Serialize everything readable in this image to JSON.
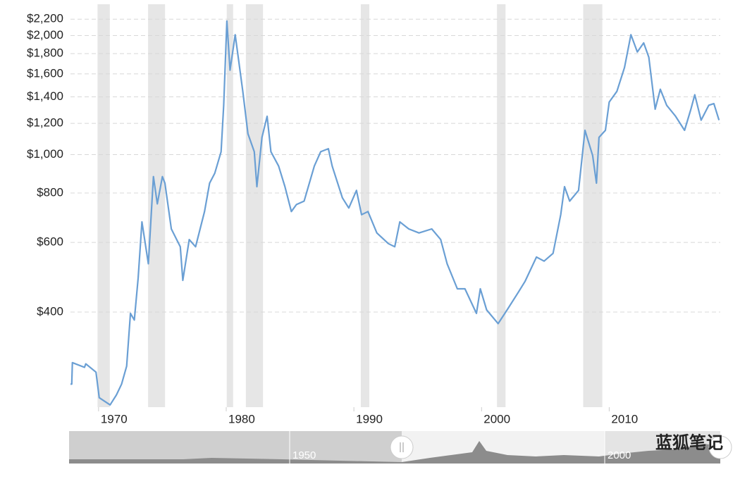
{
  "chart_data": {
    "type": "line",
    "log_scale": true,
    "grid": true,
    "color": "#6a9fd4",
    "shade_color": "#e6e6e6",
    "xlim": [
      1967.8,
      2018.7
    ],
    "xticks": [
      1970,
      1980,
      1990,
      2000,
      2010
    ],
    "ylim": [
      230,
      2400
    ],
    "yticks": [
      {
        "value": 400,
        "label": "$400"
      },
      {
        "value": 600,
        "label": "$600"
      },
      {
        "value": 800,
        "label": "$800"
      },
      {
        "value": 1000,
        "label": "$1,000"
      },
      {
        "value": 1200,
        "label": "$1,200"
      },
      {
        "value": 1400,
        "label": "$1,400"
      },
      {
        "value": 1600,
        "label": "$1,600"
      },
      {
        "value": 1800,
        "label": "$1,800"
      },
      {
        "value": 2000,
        "label": "$2,000"
      },
      {
        "value": 2200,
        "label": "$2,200"
      }
    ],
    "shaded_ranges": [
      [
        1969.92,
        1970.88
      ],
      [
        1973.88,
        1975.21
      ],
      [
        1980.04,
        1980.54
      ],
      [
        1981.54,
        1982.88
      ],
      [
        1990.54,
        1991.21
      ],
      [
        2001.21,
        2001.88
      ],
      [
        2007.96,
        2009.46
      ]
    ],
    "x": [
      1967.8,
      1967.9,
      1967.95,
      1968.9,
      1969.0,
      1969.8,
      1970.05,
      1970.9,
      1971.4,
      1971.8,
      1972.2,
      1972.5,
      1972.8,
      1973.1,
      1973.4,
      1973.9,
      1974.3,
      1974.6,
      1975.0,
      1975.2,
      1975.7,
      1976.4,
      1976.6,
      1977.1,
      1977.6,
      1978.3,
      1978.7,
      1979.1,
      1979.6,
      1979.8,
      1980.05,
      1980.3,
      1980.7,
      1981.0,
      1981.3,
      1981.7,
      1982.2,
      1982.4,
      1982.8,
      1983.2,
      1983.5,
      1984.1,
      1984.6,
      1985.1,
      1985.5,
      1986.1,
      1986.9,
      1987.4,
      1988.0,
      1988.3,
      1989.1,
      1989.6,
      1990.2,
      1990.6,
      1991.1,
      1991.8,
      1992.7,
      1993.2,
      1993.6,
      1994.3,
      1995.1,
      1996.1,
      1996.8,
      1997.3,
      1998.1,
      1998.7,
      1999.6,
      1999.9,
      2000.4,
      2001.3,
      2002.0,
      2002.9,
      2003.4,
      2004.3,
      2004.9,
      2005.6,
      2006.2,
      2006.5,
      2006.9,
      2007.6,
      2008.1,
      2008.7,
      2009.0,
      2009.2,
      2009.7,
      2010.0,
      2010.6,
      2011.2,
      2011.7,
      2012.2,
      2012.7,
      2013.1,
      2013.6,
      2014.0,
      2014.5,
      2015.2,
      2015.9,
      2016.4,
      2016.7,
      2017.2,
      2017.8,
      2018.2,
      2018.6
    ],
    "values": [
      263,
      263,
      298,
      290,
      296,
      282,
      243,
      233,
      247,
      263,
      292,
      397,
      382,
      487,
      676,
      530,
      880,
      751,
      880,
      847,
      649,
      585,
      481,
      610,
      585,
      718,
      847,
      897,
      1017,
      1333,
      2177,
      1635,
      2010,
      1706,
      1445,
      1129,
      1017,
      830,
      1106,
      1250,
      1017,
      936,
      830,
      718,
      748,
      763,
      936,
      1017,
      1035,
      936,
      778,
      733,
      812,
      705,
      718,
      634,
      596,
      585,
      676,
      649,
      634,
      649,
      610,
      530,
      458,
      458,
      397,
      458,
      405,
      374,
      405,
      450,
      478,
      551,
      538,
      563,
      705,
      830,
      763,
      812,
      1152,
      995,
      847,
      1106,
      1152,
      1358,
      1445,
      1661,
      2010,
      1818,
      1916,
      1763,
      1303,
      1463,
      1333,
      1250,
      1152,
      1303,
      1417,
      1222,
      1333,
      1346,
      1222
    ]
  },
  "navigator": {
    "labels": [
      "1950",
      "2000"
    ]
  },
  "watermark": "蓝狐笔记"
}
